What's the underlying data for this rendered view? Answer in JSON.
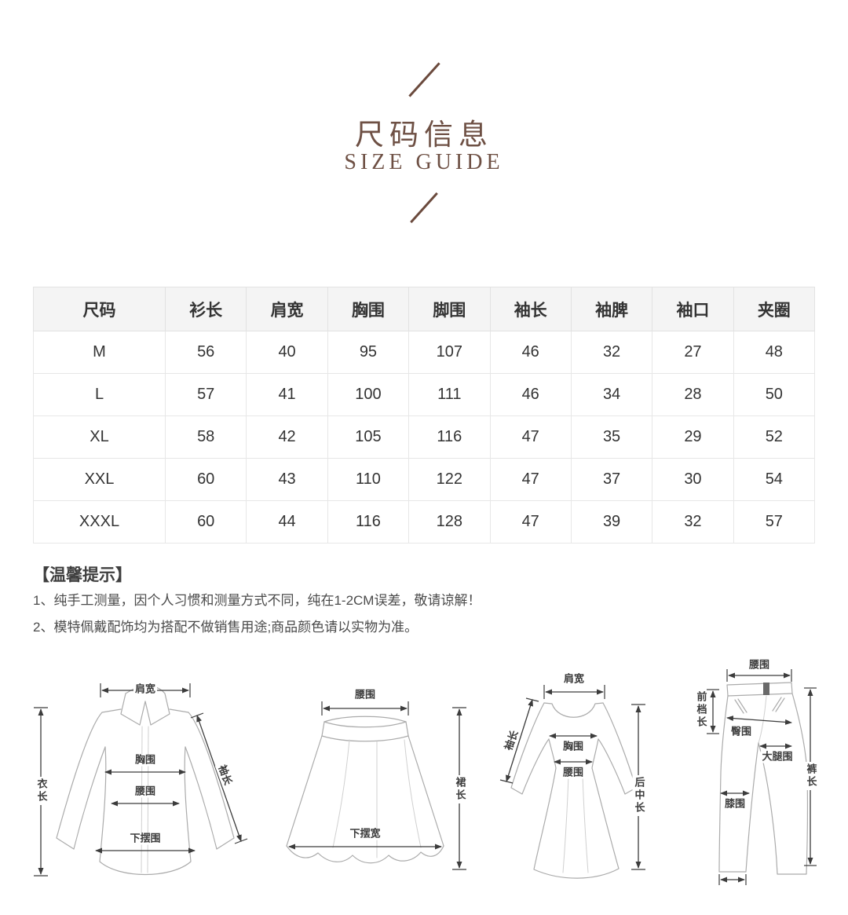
{
  "page": {
    "background": "#ffffff",
    "accent_brown": "#6e5044",
    "table_header_bg": "#f4f4f4",
    "table_border": "#e5e5e5",
    "text_dark": "#333333"
  },
  "header": {
    "title_cn": "尺码信息",
    "title_en": "SIZE GUIDE"
  },
  "size_table": {
    "columns": [
      "尺码",
      "衫长",
      "肩宽",
      "胸围",
      "脚围",
      "袖长",
      "袖脾",
      "袖口",
      "夹圈"
    ],
    "rows": [
      {
        "size": "M",
        "values": [
          "56",
          "40",
          "95",
          "107",
          "46",
          "32",
          "27",
          "48"
        ]
      },
      {
        "size": "L",
        "values": [
          "57",
          "41",
          "100",
          "111",
          "46",
          "34",
          "28",
          "50"
        ]
      },
      {
        "size": "XL",
        "values": [
          "58",
          "42",
          "105",
          "116",
          "47",
          "35",
          "29",
          "52"
        ]
      },
      {
        "size": "XXL",
        "values": [
          "60",
          "43",
          "110",
          "122",
          "47",
          "37",
          "30",
          "54"
        ]
      },
      {
        "size": "XXXL",
        "values": [
          "60",
          "44",
          "116",
          "128",
          "47",
          "39",
          "32",
          "57"
        ]
      }
    ]
  },
  "tips": {
    "title": "【温馨提示】",
    "lines": [
      "1、纯手工测量，因个人习惯和测量方式不同，纯在1-2CM误差，敬请谅解！",
      "2、模特佩戴配饰均为搭配不做销售用途;商品颜色请以实物为准。"
    ]
  },
  "diagrams": {
    "shirt": {
      "labels": {
        "shoulder": "肩宽",
        "length": "衣长",
        "chest": "胸围",
        "waist": "腰围",
        "hem": "下摆围",
        "sleeve": "袖长"
      }
    },
    "skirt": {
      "labels": {
        "waist": "腰围",
        "length": "裙长",
        "hem": "下摆宽"
      }
    },
    "dress": {
      "labels": {
        "shoulder": "肩宽",
        "sleeve": "袖长",
        "chest": "胸围",
        "waist": "腰围",
        "back_length": "后中长"
      }
    },
    "pants": {
      "labels": {
        "waist": "腰围",
        "front_rise": "前档长",
        "hip": "臀围",
        "thigh": "大腿围",
        "knee": "膝围",
        "length": "裤长"
      }
    }
  }
}
